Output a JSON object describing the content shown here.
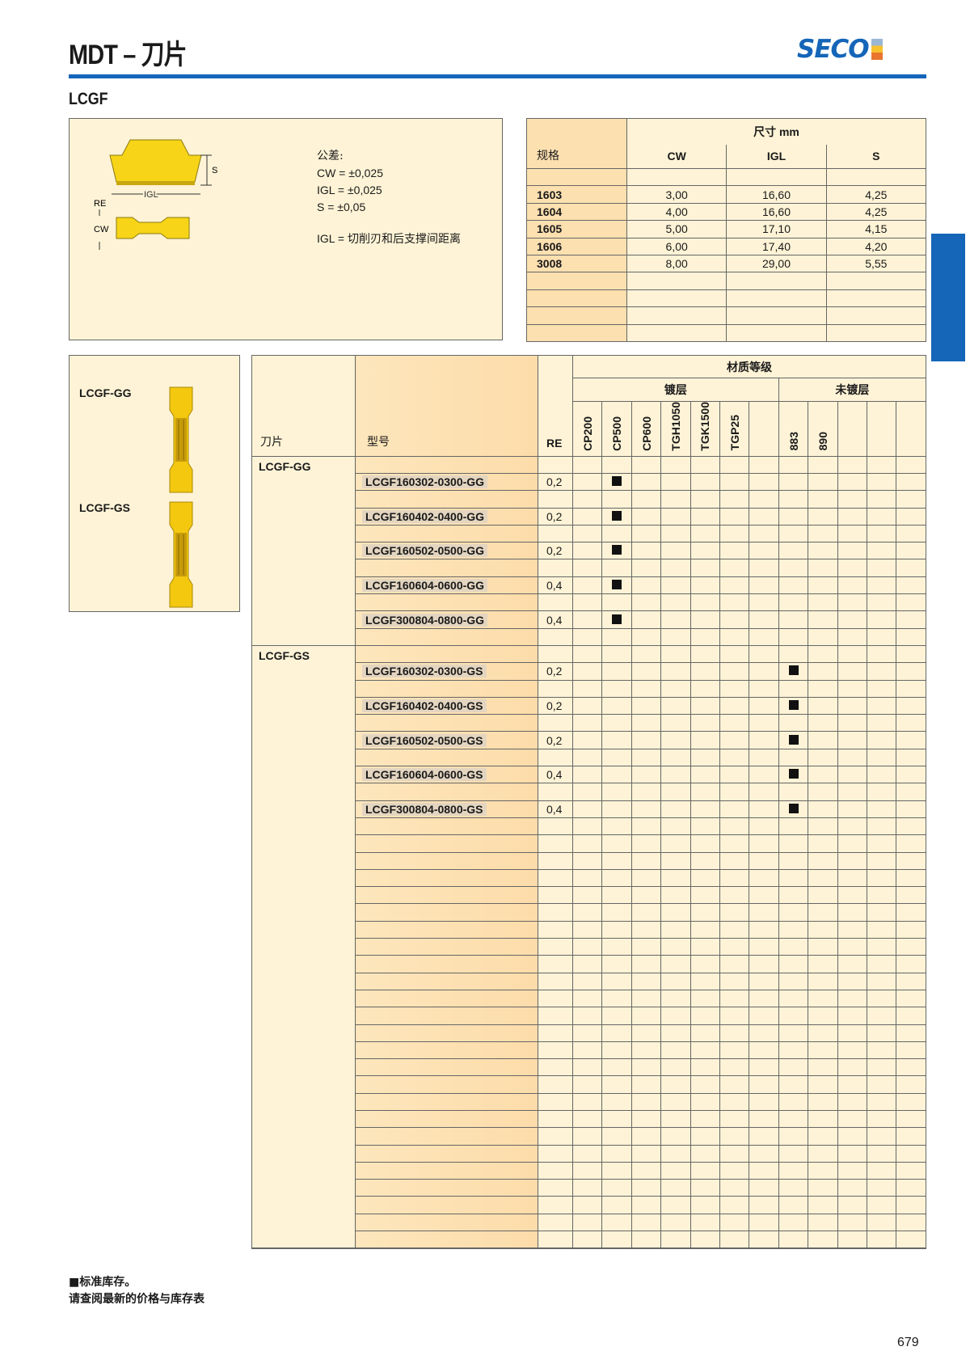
{
  "header": {
    "title": "MDT – 刀片",
    "logo": "SECO",
    "subtitle": "LCGF",
    "brand_color": "#1565b8"
  },
  "drawing": {
    "labels": {
      "s": "S",
      "igl": "IGL",
      "re": "RE",
      "cw": "CW"
    },
    "tolerance_title": "公差:",
    "tolerances": [
      "CW = ±0,025",
      "IGL = ±0,025",
      "S = ±0,05"
    ],
    "note": "IGL = 切削刃和后支撑间距离"
  },
  "dimensions": {
    "col0": "规格",
    "group": "尺寸 mm",
    "columns": [
      "CW",
      "IGL",
      "S"
    ],
    "rows": [
      {
        "size": "1603",
        "cw": "3,00",
        "igl": "16,60",
        "s": "4,25"
      },
      {
        "size": "1604",
        "cw": "4,00",
        "igl": "16,60",
        "s": "4,25"
      },
      {
        "size": "1605",
        "cw": "5,00",
        "igl": "17,10",
        "s": "4,15"
      },
      {
        "size": "1606",
        "cw": "6,00",
        "igl": "17,40",
        "s": "4,20"
      },
      {
        "size": "3008",
        "cw": "8,00",
        "igl": "29,00",
        "s": "5,55"
      }
    ]
  },
  "images": [
    {
      "label": "LCGF-GG"
    },
    {
      "label": "LCGF-GS"
    }
  ],
  "table": {
    "col_insert": "刀片",
    "col_model": "型号",
    "col_re": "RE",
    "grade_group": "材质等级",
    "coated": "镀层",
    "uncoated": "未镀层",
    "coated_grades": [
      "CP200",
      "CP500",
      "CP600",
      "TGH1050",
      "TGK1500",
      "TGP25",
      ""
    ],
    "uncoated_grades": [
      "883",
      "890",
      "",
      "",
      ""
    ],
    "groups": [
      {
        "name": "LCGF-GG",
        "items": [
          {
            "model": "LCGF160302-0300-GG",
            "re": "0,2",
            "stock": "CP500"
          },
          {
            "model": "LCGF160402-0400-GG",
            "re": "0,2",
            "stock": "CP500"
          },
          {
            "model": "LCGF160502-0500-GG",
            "re": "0,2",
            "stock": "CP500"
          },
          {
            "model": "LCGF160604-0600-GG",
            "re": "0,4",
            "stock": "CP500"
          },
          {
            "model": "LCGF300804-0800-GG",
            "re": "0,4",
            "stock": "CP500"
          }
        ]
      },
      {
        "name": "LCGF-GS",
        "items": [
          {
            "model": "LCGF160302-0300-GS",
            "re": "0,2",
            "stock": "883"
          },
          {
            "model": "LCGF160402-0400-GS",
            "re": "0,2",
            "stock": "883"
          },
          {
            "model": "LCGF160502-0500-GS",
            "re": "0,2",
            "stock": "883"
          },
          {
            "model": "LCGF160604-0600-GS",
            "re": "0,4",
            "stock": "883"
          },
          {
            "model": "LCGF300804-0800-GS",
            "re": "0,4",
            "stock": "883"
          }
        ]
      }
    ]
  },
  "footer": {
    "legend": "■标准库存。",
    "note": "请查阅最新的价格与库存表",
    "page": "679"
  }
}
